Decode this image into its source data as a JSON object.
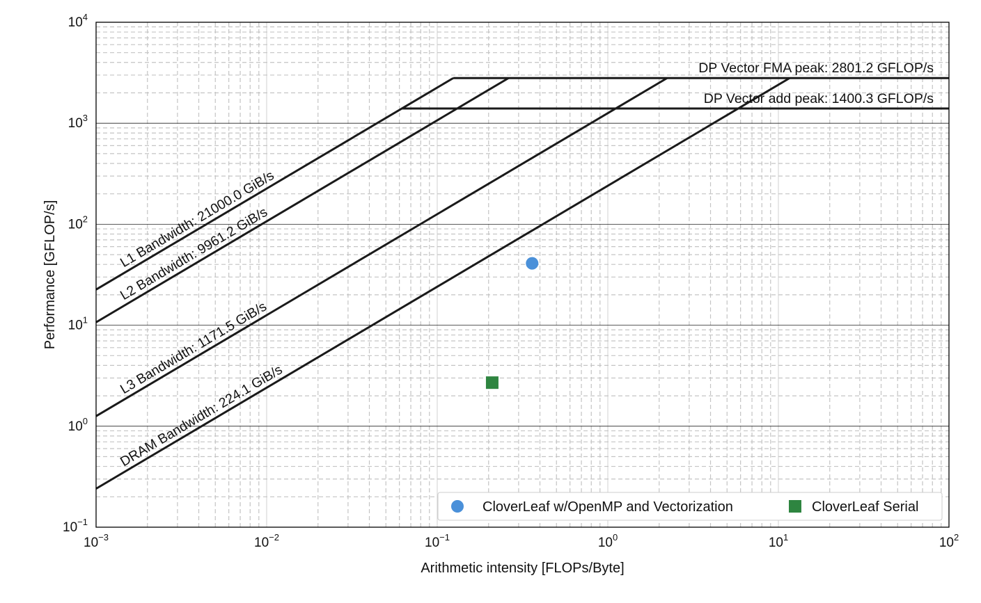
{
  "chart_data": {
    "type": "scatter",
    "xscale": "log",
    "yscale": "log",
    "xlim": [
      0.001,
      100
    ],
    "ylim": [
      0.1,
      10000
    ],
    "xlabel": "Arithmetic intensity [FLOPs/Byte]",
    "ylabel": "Performance [GFLOP/s]",
    "grid": true,
    "x_ticks": [
      {
        "base": "10",
        "exp": "−3"
      },
      {
        "base": "10",
        "exp": "−2"
      },
      {
        "base": "10",
        "exp": "−1"
      },
      {
        "base": "10",
        "exp": "0"
      },
      {
        "base": "10",
        "exp": "1"
      },
      {
        "base": "10",
        "exp": "2"
      }
    ],
    "y_ticks": [
      {
        "base": "10",
        "exp": "−1"
      },
      {
        "base": "10",
        "exp": "0"
      },
      {
        "base": "10",
        "exp": "1"
      },
      {
        "base": "10",
        "exp": "2"
      },
      {
        "base": "10",
        "exp": "3"
      },
      {
        "base": "10",
        "exp": "4"
      }
    ],
    "compute_roofs": [
      {
        "label": "DP Vector FMA peak: 2801.2 GFLOP/s",
        "value": 2801.2
      },
      {
        "label": "DP Vector add peak: 1400.3 GFLOP/s",
        "value": 1400.3
      }
    ],
    "bandwidth_roofs": [
      {
        "label": "L1 Bandwidth: 21000.0 GiB/s",
        "value": 21000.0,
        "gflops_per_byte_unit": 22548.6
      },
      {
        "label": "L2 Bandwidth: 9961.2 GiB/s",
        "value": 9961.2,
        "gflops_per_byte_unit": 10695.7
      },
      {
        "label": "L3 Bandwidth: 1171.5 GiB/s",
        "value": 1171.5,
        "gflops_per_byte_unit": 1257.9
      },
      {
        "label": "DRAM Bandwidth: 224.1 GiB/s",
        "value": 224.1,
        "gflops_per_byte_unit": 240.6
      }
    ],
    "series": [
      {
        "name": "CloverLeaf w/OpenMP and Vectorization",
        "marker": "circle",
        "color": "#4a90d9",
        "points": [
          {
            "x": 0.36,
            "y": 41
          }
        ]
      },
      {
        "name": "CloverLeaf Serial",
        "marker": "square",
        "color": "#2e8540",
        "points": [
          {
            "x": 0.21,
            "y": 2.7
          }
        ]
      }
    ],
    "legend_position": "lower-right"
  }
}
